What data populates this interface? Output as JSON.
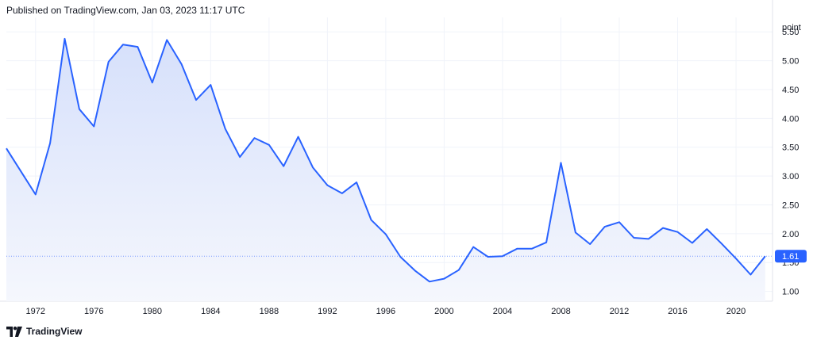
{
  "header": {
    "published": "Published on TradingView.com, Jan 03, 2023 11:17 UTC"
  },
  "brand": {
    "name": "TradingView"
  },
  "colors": {
    "line": "#2962ff",
    "fill_top": "#d6e0fb",
    "fill_bottom": "#f5f7fd",
    "grid": "#f0f3fa",
    "last_badge": "#2962ff"
  },
  "chart_data": {
    "type": "area",
    "ylabel": "point",
    "x": [
      1970,
      1971,
      1972,
      1973,
      1974,
      1975,
      1976,
      1977,
      1978,
      1979,
      1980,
      1981,
      1982,
      1983,
      1984,
      1985,
      1986,
      1987,
      1988,
      1989,
      1990,
      1991,
      1992,
      1993,
      1994,
      1995,
      1996,
      1997,
      1998,
      1999,
      2000,
      2001,
      2002,
      2003,
      2004,
      2005,
      2006,
      2007,
      2008,
      2009,
      2010,
      2011,
      2012,
      2013,
      2014,
      2015,
      2016,
      2017,
      2018,
      2019,
      2020,
      2021,
      2022
    ],
    "values": [
      3.48,
      3.08,
      2.68,
      3.57,
      5.38,
      4.16,
      3.86,
      4.98,
      5.28,
      5.24,
      4.62,
      5.36,
      4.94,
      4.32,
      4.58,
      3.82,
      3.33,
      3.66,
      3.54,
      3.17,
      3.68,
      3.15,
      2.84,
      2.7,
      2.89,
      2.24,
      1.99,
      1.6,
      1.36,
      1.17,
      1.22,
      1.37,
      1.77,
      1.6,
      1.61,
      1.74,
      1.74,
      1.85,
      3.23,
      2.02,
      1.82,
      2.12,
      2.2,
      1.93,
      1.91,
      2.1,
      2.03,
      1.84,
      2.08,
      1.83,
      1.57,
      1.29,
      1.61
    ],
    "x_ticks": [
      "1972",
      "1976",
      "1980",
      "1984",
      "1988",
      "1992",
      "1996",
      "2000",
      "2004",
      "2008",
      "2012",
      "2016",
      "2020"
    ],
    "y_ticks": [
      "1.00",
      "1.50",
      "2.00",
      "2.50",
      "3.00",
      "3.50",
      "4.00",
      "4.50",
      "5.00",
      "5.50"
    ],
    "last_value_label": "1.61",
    "ylim": [
      0.83,
      5.75
    ],
    "xlim": [
      1970,
      2022.5
    ],
    "grid": true
  }
}
